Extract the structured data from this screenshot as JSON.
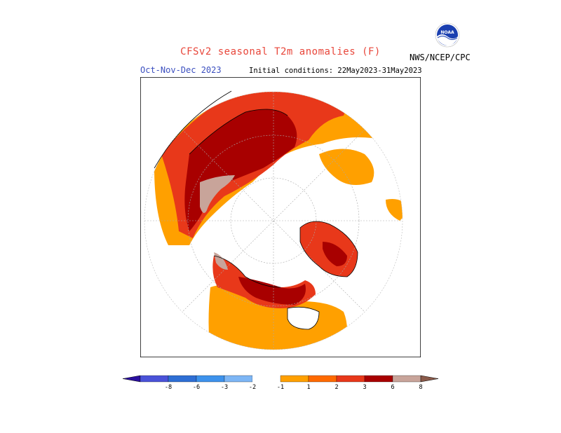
{
  "header": {
    "title": "CFSv2 seasonal T2m anomalies (F)",
    "season": "Oct-Nov-Dec 2023",
    "initial_conditions": "Initial conditions: 22May2023-31May2023",
    "agency": "NWS/NCEP/CPC",
    "logo_icon": "noaa-logo-icon"
  },
  "map": {
    "projection": "north-polar-stereographic",
    "variable": "T2m anomaly",
    "units": "F"
  },
  "legend": {
    "labels": [
      "-8",
      "-6",
      "-3",
      "-2",
      "-1",
      "1",
      "2",
      "3",
      "6",
      "8"
    ],
    "colors": [
      "#2a0fa0",
      "#4a52d8",
      "#2e6ed4",
      "#3d92ec",
      "#7db6f5",
      "#ffffff",
      "#ffa000",
      "#ff6a00",
      "#e8381a",
      "#a80000",
      "#c8a49a",
      "#8a5a4a"
    ]
  }
}
